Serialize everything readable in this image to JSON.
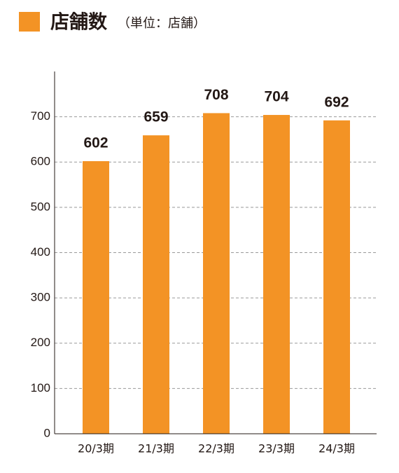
{
  "chart_data": {
    "type": "bar",
    "title": "店舗数",
    "subtitle": "（単位：店舗）",
    "categories": [
      "20/3期",
      "21/3期",
      "22/3期",
      "23/3期",
      "24/3期"
    ],
    "values": [
      602,
      659,
      708,
      704,
      692
    ],
    "color": "#f39325",
    "ylim": [
      0,
      800
    ],
    "yticks": [
      0,
      100,
      200,
      300,
      400,
      500,
      600,
      700
    ],
    "grid": true
  }
}
